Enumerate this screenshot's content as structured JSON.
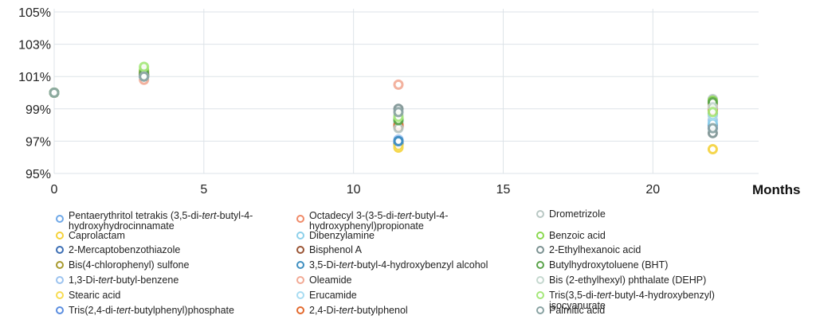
{
  "chart_data": {
    "type": "scatter",
    "title": "",
    "xlabel": "Months",
    "ylabel": "",
    "xlim": [
      0,
      23
    ],
    "ylim": [
      95,
      105
    ],
    "xticks": [
      0,
      5,
      10,
      15,
      20
    ],
    "yticks": [
      95,
      97,
      99,
      101,
      103,
      105
    ],
    "ytick_labels": [
      "95%",
      "97%",
      "99%",
      "101%",
      "103%",
      "105%"
    ],
    "x": [
      0,
      3,
      11.5,
      22
    ],
    "series": [
      {
        "name": "Pentaerythritol tetrakis (3,5-di-tert-butyl-4-hydroxyhydrocinnamate",
        "color": "#6fa8e8",
        "values": [
          100,
          101.0,
          97.0,
          99.0
        ]
      },
      {
        "name": "Caprolactam",
        "color": "#f5d23a",
        "values": [
          100,
          101.1,
          96.6,
          96.5
        ]
      },
      {
        "name": "2-Mercaptobenzothiazole",
        "color": "#3c6eb4",
        "values": [
          100,
          101.0,
          96.9,
          98.0
        ]
      },
      {
        "name": "Bis(4-chlorophenyl) sulfone",
        "color": "#a89a2e",
        "values": [
          100,
          101.0,
          96.8,
          99.3
        ]
      },
      {
        "name": "1,3-Di-tert-butyl-benzene",
        "color": "#9cc3ef",
        "values": [
          100,
          101.0,
          97.1,
          98.3
        ]
      },
      {
        "name": "Stearic acid",
        "color": "#f7dc52",
        "values": [
          100,
          101.2,
          96.7,
          98.6
        ]
      },
      {
        "name": "Tris(2,4-di-tert-butylphenyl)phosphate",
        "color": "#5b8ee0",
        "values": [
          100,
          101.1,
          97.0,
          97.8
        ]
      },
      {
        "name": "Octadecyl 3-(3-5-di-tert-butyl-4-hydroxyphenyl)propionate",
        "color": "#f08a68",
        "values": [
          100,
          101.1,
          98.1,
          99.0
        ]
      },
      {
        "name": "Dibenzylamine",
        "color": "#8dd0ea",
        "values": [
          100,
          101.0,
          98.0,
          98.1
        ]
      },
      {
        "name": "Bisphenol A",
        "color": "#9a5535",
        "values": [
          100,
          101.1,
          97.9,
          99.1
        ]
      },
      {
        "name": "3,5-Di-tert-butyl-4-hydroxybenzyl alcohol",
        "color": "#3f8fc0",
        "values": [
          100,
          101.0,
          97.0,
          98.7
        ]
      },
      {
        "name": "Oleamide",
        "color": "#f2aa95",
        "values": [
          100,
          100.8,
          100.5,
          99.2
        ]
      },
      {
        "name": "Erucamide",
        "color": "#a8dcf2",
        "values": [
          100,
          101.0,
          98.2,
          98.6
        ]
      },
      {
        "name": "2,4-Di-tert-butylphenol",
        "color": "#e36a2e",
        "values": [
          100,
          101.3,
          98.0,
          98.9
        ]
      },
      {
        "name": "Drometrizole",
        "color": "#b9c8c4",
        "values": [
          100,
          101.0,
          97.8,
          99.6
        ]
      },
      {
        "name": "Benzoic acid",
        "color": "#8bd950",
        "values": [
          100,
          101.4,
          98.4,
          99.5
        ]
      },
      {
        "name": "2-Ethylhexanoic acid",
        "color": "#7c9292",
        "values": [
          100,
          101.1,
          99.0,
          97.5
        ]
      },
      {
        "name": "Butylhydroxytoluene (BHT)",
        "color": "#5aa34a",
        "values": [
          100,
          101.2,
          98.3,
          99.4
        ]
      },
      {
        "name": "Bis (2-ethylhexyl) phthalate (DEHP)",
        "color": "#c5d8cf",
        "values": [
          100,
          101.0,
          98.6,
          99.1
        ]
      },
      {
        "name": "Tris(3,5-di-tert-butyl-4-hydroxybenzyl) isocyanurate",
        "color": "#a5e87a",
        "values": [
          100,
          101.6,
          98.5,
          98.8
        ]
      },
      {
        "name": "Palmitic acid",
        "color": "#8aa3a3",
        "values": [
          100,
          101.0,
          98.8,
          97.8
        ]
      }
    ]
  },
  "legend": [
    [
      "Pentaerythritol tetrakis (3,5-di-",
      {
        "i": "tert"
      },
      "-butyl-4-hydroxyhydrocinnamate"
    ],
    [
      "Caprolactam"
    ],
    [
      "2-Mercaptobenzothiazole"
    ],
    [
      "Bis(4-chlorophenyl) sulfone"
    ],
    [
      "1,3-Di-",
      {
        "i": "tert"
      },
      "-butyl-benzene"
    ],
    [
      "Stearic acid"
    ],
    [
      "Tris(2,4-di-",
      {
        "i": "tert"
      },
      "-butylphenyl)phosphate"
    ],
    [
      "Octadecyl 3-(3-5-di-",
      {
        "i": "tert"
      },
      "-butyl-4-hydroxyphenyl)propionate"
    ],
    [
      "Dibenzylamine"
    ],
    [
      "Bisphenol A"
    ],
    [
      "3,5-Di-",
      {
        "i": "tert"
      },
      "-butyl-4-hydroxybenzyl alcohol"
    ],
    [
      "Oleamide"
    ],
    [
      "Erucamide"
    ],
    [
      "2,4-Di-",
      {
        "i": "tert"
      },
      "-butylphenol"
    ],
    [
      "Drometrizole"
    ],
    [
      "Benzoic acid"
    ],
    [
      "2-Ethylhexanoic acid"
    ],
    [
      "Butylhydroxytoluene (BHT)"
    ],
    [
      "Bis (2-ethylhexyl) phthalate (DEHP)"
    ],
    [
      "Tris(3,5-di-",
      {
        "i": "tert"
      },
      "-butyl-4-hydroxybenzyl) isocyanurate"
    ],
    [
      "Palmitic acid"
    ]
  ]
}
